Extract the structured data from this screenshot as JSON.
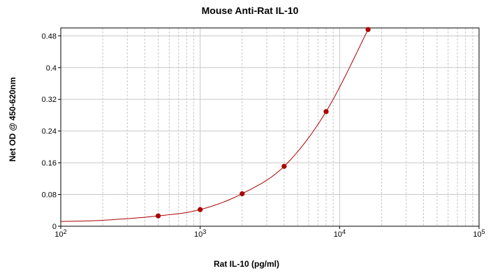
{
  "chart_data": {
    "type": "scatter",
    "title": "Mouse Anti-Rat IL-10",
    "xlabel": "Rat IL-10 (pg/ml)",
    "ylabel": "Net OD @ 450-620nm",
    "x_scale": "log",
    "xlim": [
      100,
      100000
    ],
    "ylim": [
      0,
      0.5
    ],
    "x_ticks": [
      {
        "value": 100,
        "base": "10",
        "exp": "2"
      },
      {
        "value": 1000,
        "base": "10",
        "exp": "3"
      },
      {
        "value": 10000,
        "base": "10",
        "exp": "4"
      },
      {
        "value": 100000,
        "base": "10",
        "exp": "5"
      }
    ],
    "y_ticks": [
      "0",
      "0.08",
      "0.16",
      "0.24",
      "0.32",
      "0.4",
      "0.48"
    ],
    "grid": true,
    "colors": {
      "series": "#aa0000",
      "grid": "#c8c8c8",
      "axis": "#000000"
    },
    "series": [
      {
        "x": [
          500,
          1000,
          2000,
          4000,
          8000,
          16000
        ],
        "y": [
          0.026,
          0.042,
          0.082,
          0.151,
          0.289,
          0.496
        ]
      }
    ],
    "fit_curve": {
      "type": "4pl-like",
      "x_range": [
        100,
        16000
      ]
    }
  }
}
